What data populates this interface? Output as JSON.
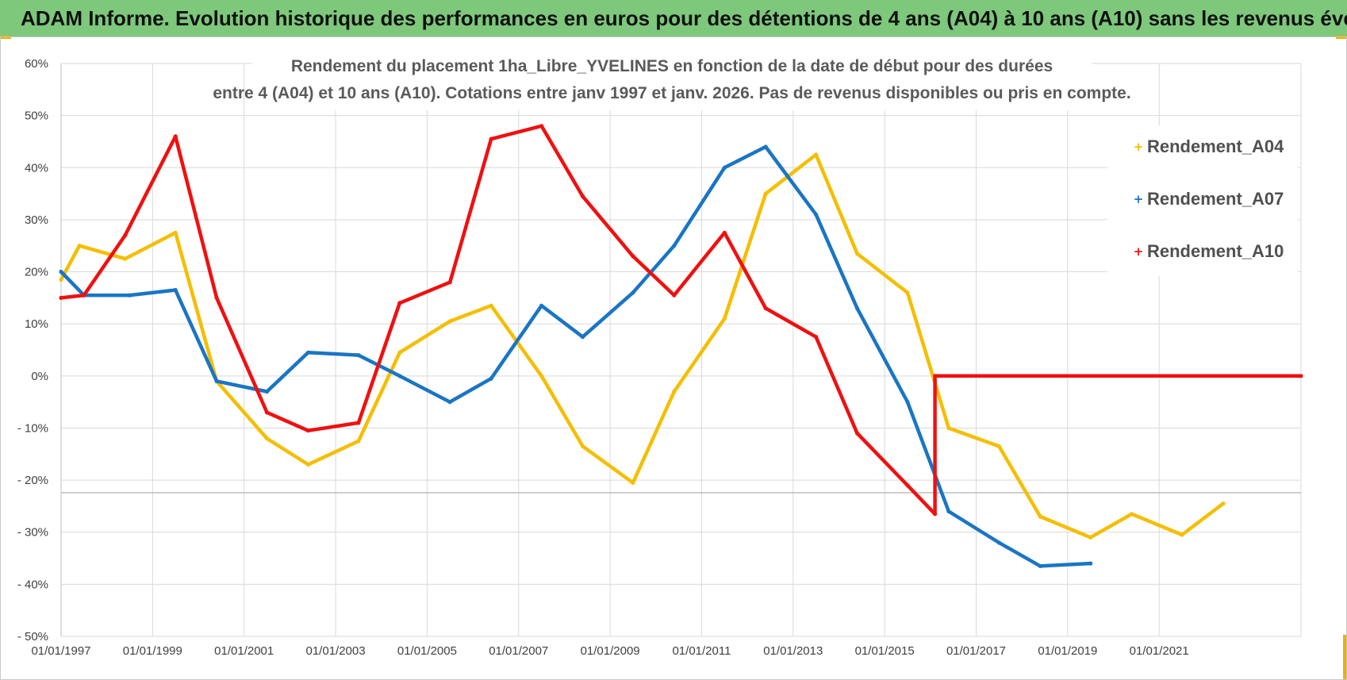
{
  "banner": {
    "title": "ADAM Informe. Evolution historique des performances en euros pour des détentions de 4 ans (A04) à 10 ans (A10) sans les revenus éventuels"
  },
  "colors": {
    "banner_bg": "#7dc87b",
    "accent_corner": "#e9b100",
    "A04": "#f5be00",
    "A07": "#1a75c4",
    "A10": "#f01010"
  },
  "chart_data": {
    "type": "line",
    "title": "Rendement du placement 1ha_Libre_YVELINES en fonction de la date de début pour des durées",
    "subtitle": "entre 4 (A04) et 10 ans (A10).  Cotations entre janv 1997 et janv. 2026. Pas de revenus disponibles ou pris en compte.",
    "xlabel": "",
    "ylabel": "",
    "x_range": [
      1997,
      2024.1
    ],
    "ylim": [
      -50,
      60
    ],
    "grid": true,
    "legend_position": "top-right",
    "x_tick_values": [
      1997,
      1999,
      2001,
      2003,
      2005,
      2007,
      2009,
      2011,
      2013,
      2015,
      2017,
      2019,
      2021
    ],
    "x_tick_labels": [
      "01/01/1997",
      "01/01/1999",
      "01/01/2001",
      "01/01/2003",
      "01/01/2005",
      "01/01/2007",
      "01/01/2009",
      "01/01/2011",
      "01/01/2013",
      "01/01/2015",
      "01/01/2017",
      "01/01/2019",
      "01/01/2021"
    ],
    "y_tick_values": [
      60,
      50,
      40,
      30,
      20,
      10,
      0,
      -10,
      -20,
      -30,
      -40,
      -50
    ],
    "y_tick_labels": [
      "60%",
      "50%",
      "40%",
      "30%",
      "20%",
      "10%",
      "0%",
      "- 10%",
      "- 20%",
      "- 30%",
      "- 40%",
      "- 50%"
    ],
    "series": [
      {
        "name": "Rendement_A04",
        "color": "#f5be00",
        "x": [
          1997,
          1997.4,
          1998.4,
          1999.5,
          2000.4,
          2001.5,
          2002.4,
          2003.5,
          2004.4,
          2005.5,
          2006.4,
          2007.5,
          2008.4,
          2009.5,
          2010.4,
          2011.5,
          2012.4,
          2013.5,
          2014.4,
          2015.5,
          2016.4,
          2017.5,
          2018.4,
          2019.5,
          2020.4,
          2021.5,
          2022.4
        ],
        "values": [
          18.5,
          25,
          22.5,
          27.5,
          -1,
          -12,
          -17,
          -12.5,
          4.5,
          10.5,
          13.5,
          0,
          -13.5,
          -20.5,
          -3,
          11,
          35,
          42.5,
          23.5,
          16,
          -10,
          -13.5,
          -27,
          -31,
          -26.5,
          -30.5,
          -24.5
        ]
      },
      {
        "name": "Rendement_A07",
        "color": "#1a75c4",
        "x": [
          1997,
          1997.5,
          1998.5,
          1999.5,
          2000.4,
          2001.5,
          2002.4,
          2003.5,
          2004.4,
          2005.5,
          2006.4,
          2007.5,
          2008.4,
          2009.5,
          2010.4,
          2011.5,
          2012.4,
          2013.5,
          2014.4,
          2015.5,
          2016.4,
          2017.5,
          2018.4,
          2019.5
        ],
        "values": [
          20,
          15.5,
          15.5,
          16.5,
          -1,
          -3,
          4.5,
          4,
          0,
          -5,
          -0.5,
          13.5,
          7.5,
          16,
          25,
          40,
          44,
          31,
          13,
          -5,
          -26,
          -32,
          -36.5,
          -36
        ]
      },
      {
        "name": "Rendement_A10",
        "color": "#f01010",
        "x": [
          1997,
          1997.5,
          1998.4,
          1999.5,
          2000.4,
          2001.5,
          2002.4,
          2003.5,
          2004.4,
          2005.5,
          2006.4,
          2007.5,
          2008.4,
          2009.5,
          2010.4,
          2011.5,
          2012.4,
          2013.5,
          2014.4,
          2015.5,
          2016.1,
          2016.1,
          2024.1
        ],
        "values": [
          15,
          15.5,
          27,
          46,
          15,
          -7,
          -10.5,
          -9,
          14,
          18,
          45.5,
          48,
          34.5,
          23,
          15.5,
          27.5,
          13,
          7.5,
          -11,
          -21,
          -26.5,
          0,
          0
        ]
      }
    ]
  }
}
